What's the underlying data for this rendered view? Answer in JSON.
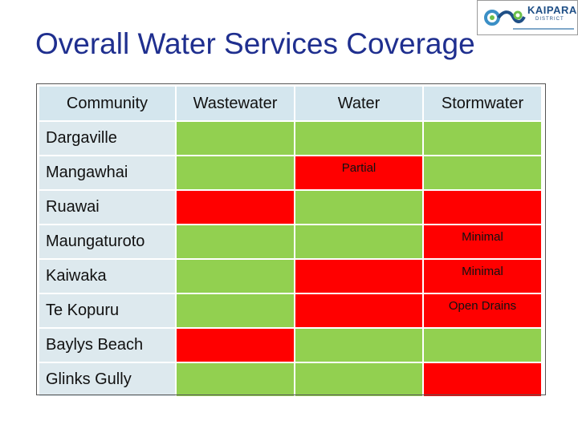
{
  "title": "Overall Water Services Coverage",
  "logo": {
    "brand": "KAIPARA",
    "sub": "DISTRICT"
  },
  "colors": {
    "full": "#92d050",
    "none": "#ff0000",
    "header": "#d4e6ee",
    "label": "#dde9ee",
    "title": "#1f2f8f"
  },
  "table": {
    "headers": [
      "Community",
      "Wastewater",
      "Water",
      "Stormwater"
    ],
    "rows": [
      {
        "community": "Dargaville",
        "wastewater": {
          "status": "green",
          "note": ""
        },
        "water": {
          "status": "green",
          "note": ""
        },
        "stormwater": {
          "status": "green",
          "note": ""
        }
      },
      {
        "community": "Mangawhai",
        "wastewater": {
          "status": "green",
          "note": ""
        },
        "water": {
          "status": "red",
          "note": "Partial"
        },
        "stormwater": {
          "status": "green",
          "note": ""
        }
      },
      {
        "community": "Ruawai",
        "wastewater": {
          "status": "red",
          "note": ""
        },
        "water": {
          "status": "green",
          "note": ""
        },
        "stormwater": {
          "status": "red",
          "note": ""
        }
      },
      {
        "community": "Maungaturoto",
        "wastewater": {
          "status": "green",
          "note": ""
        },
        "water": {
          "status": "green",
          "note": ""
        },
        "stormwater": {
          "status": "red",
          "note": "Minimal"
        }
      },
      {
        "community": "Kaiwaka",
        "wastewater": {
          "status": "green",
          "note": ""
        },
        "water": {
          "status": "red",
          "note": ""
        },
        "stormwater": {
          "status": "red",
          "note": "Minimal"
        }
      },
      {
        "community": "Te Kopuru",
        "wastewater": {
          "status": "green",
          "note": ""
        },
        "water": {
          "status": "red",
          "note": ""
        },
        "stormwater": {
          "status": "red",
          "note": "Open Drains"
        }
      },
      {
        "community": "Baylys Beach",
        "wastewater": {
          "status": "red",
          "note": ""
        },
        "water": {
          "status": "green",
          "note": ""
        },
        "stormwater": {
          "status": "green",
          "note": ""
        }
      },
      {
        "community": "Glinks Gully",
        "wastewater": {
          "status": "green",
          "note": ""
        },
        "water": {
          "status": "green",
          "note": ""
        },
        "stormwater": {
          "status": "red",
          "note": ""
        }
      }
    ]
  }
}
